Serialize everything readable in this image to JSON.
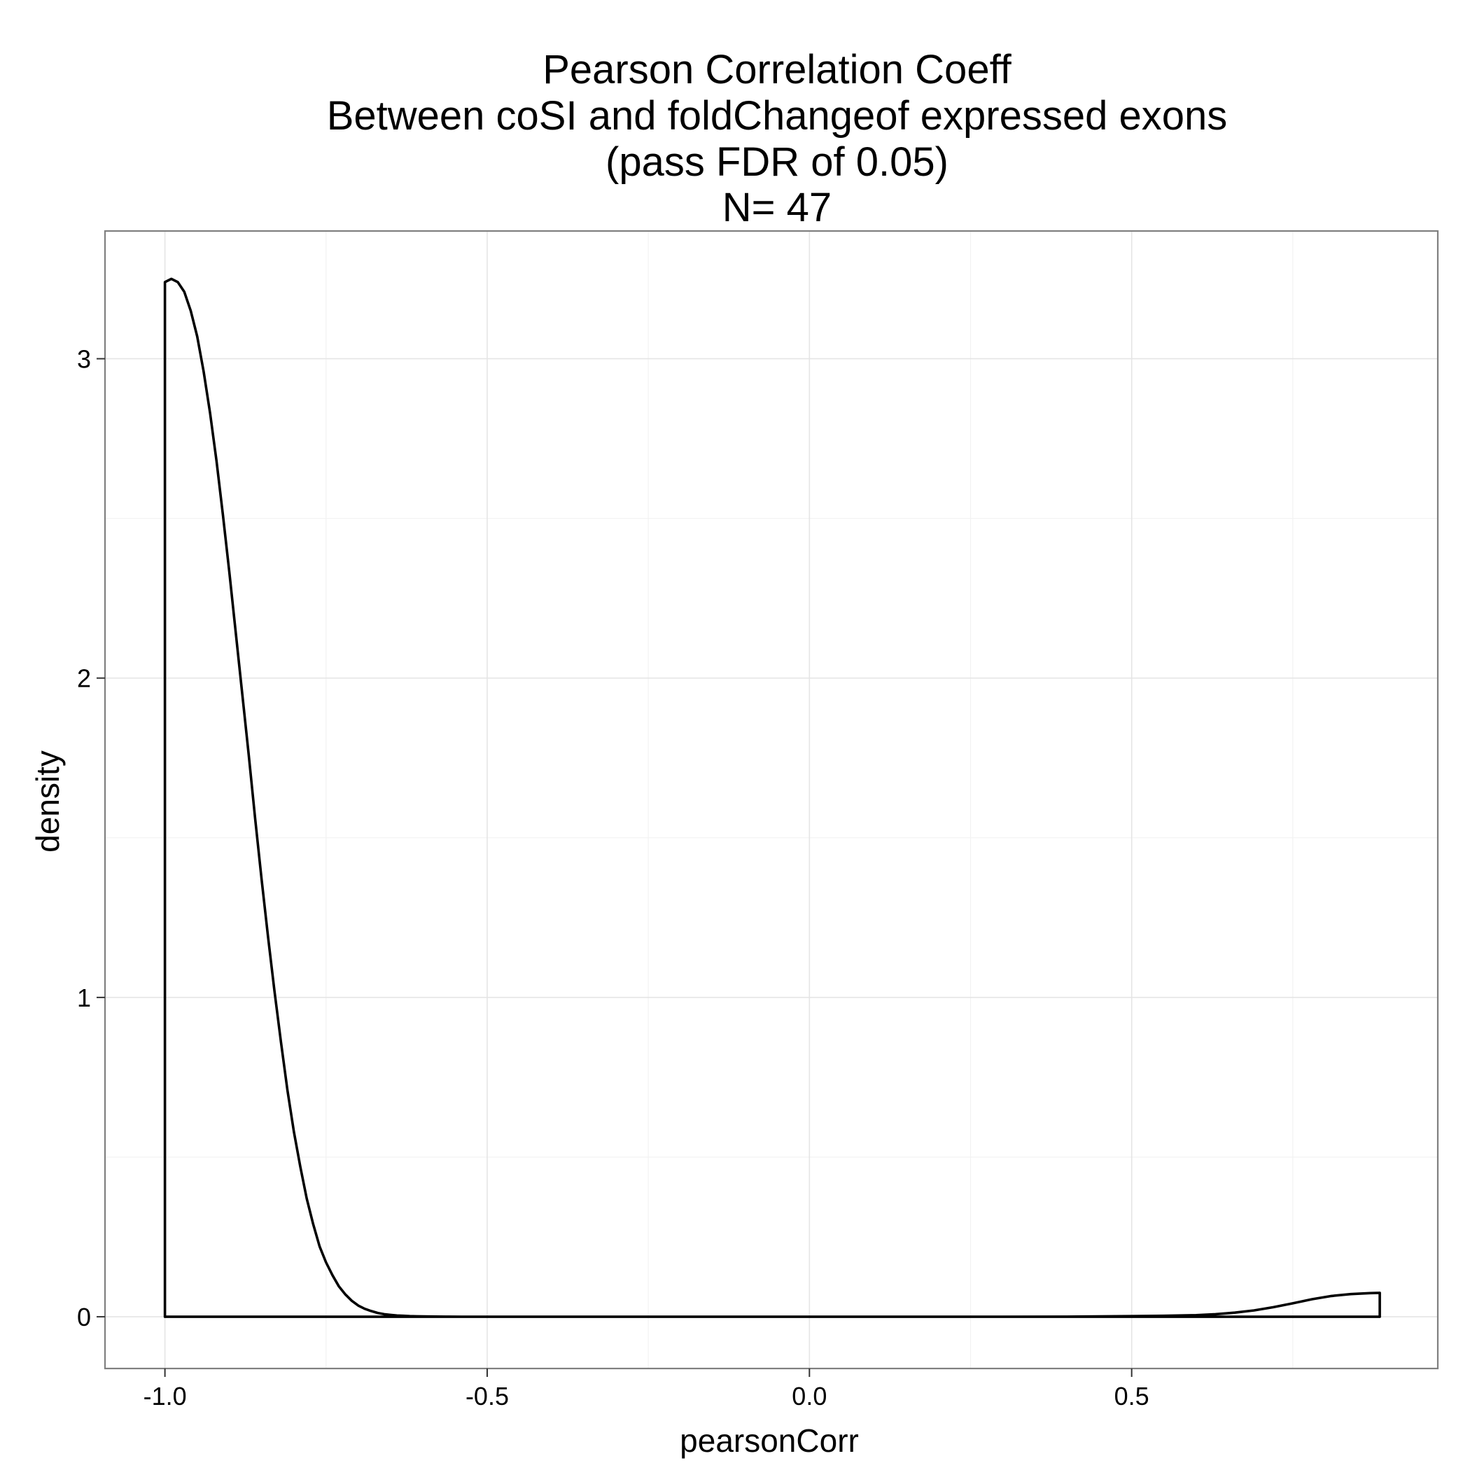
{
  "chart_data": {
    "type": "area",
    "title_lines": [
      "Pearson Correlation Coeff",
      "Between coSI and foldChangeof expressed exons",
      "(pass FDR of 0.05)",
      "N= 47"
    ],
    "xlabel": "pearsonCorr",
    "ylabel": "density",
    "xlim": [
      -1.093,
      0.975
    ],
    "ylim": [
      -0.162,
      3.4
    ],
    "x_ticks": [
      -1.0,
      -0.5,
      0.0,
      0.5
    ],
    "x_tick_labels": [
      "-1.0",
      "-0.5",
      "0.0",
      "0.5"
    ],
    "y_ticks": [
      0,
      1,
      2,
      3
    ],
    "y_tick_labels": [
      "0",
      "1",
      "2",
      "3"
    ],
    "x_minor_ticks": [
      -0.75,
      -0.25,
      0.25,
      0.75
    ],
    "y_minor_ticks": [
      0.5,
      1.5,
      2.5
    ],
    "grid": true,
    "legend": "none",
    "series": [
      {
        "x": [
          -1.0,
          -0.99,
          -0.98,
          -0.97,
          -0.96,
          -0.95,
          -0.94,
          -0.93,
          -0.92,
          -0.91,
          -0.9,
          -0.89,
          -0.88,
          -0.87,
          -0.86,
          -0.85,
          -0.84,
          -0.83,
          -0.82,
          -0.81,
          -0.8,
          -0.79,
          -0.78,
          -0.77,
          -0.76,
          -0.75,
          -0.74,
          -0.73,
          -0.72,
          -0.71,
          -0.7,
          -0.69,
          -0.68,
          -0.67,
          -0.66,
          -0.65,
          -0.64,
          -0.63,
          -0.62,
          -0.61,
          -0.6,
          -0.58,
          -0.56,
          -0.54,
          -0.52,
          -0.5,
          -0.45,
          -0.4,
          -0.3,
          -0.2,
          -0.1,
          0.0,
          0.1,
          0.2,
          0.3,
          0.4,
          0.45,
          0.5,
          0.55,
          0.6,
          0.63,
          0.66,
          0.69,
          0.72,
          0.75,
          0.78,
          0.81,
          0.84,
          0.87,
          0.885
        ],
        "y": [
          3.24,
          3.25,
          3.24,
          3.21,
          3.15,
          3.07,
          2.96,
          2.83,
          2.68,
          2.51,
          2.33,
          2.14,
          1.95,
          1.76,
          1.56,
          1.37,
          1.19,
          1.02,
          0.86,
          0.71,
          0.58,
          0.47,
          0.37,
          0.29,
          0.22,
          0.17,
          0.13,
          0.095,
          0.07,
          0.05,
          0.035,
          0.025,
          0.018,
          0.012,
          0.008,
          0.006,
          0.004,
          0.003,
          0.002,
          0.0015,
          0.001,
          0.0006,
          0.0004,
          0.0002,
          0.0001,
          0.0,
          0.0,
          0.0,
          0.0,
          0.0,
          0.0,
          0.0,
          0.0,
          0.0,
          0.0,
          0.0005,
          0.001,
          0.002,
          0.003,
          0.005,
          0.008,
          0.013,
          0.02,
          0.03,
          0.042,
          0.055,
          0.065,
          0.071,
          0.074,
          0.075
        ]
      }
    ],
    "colors": {
      "panel_background": "#ffffff",
      "panel_border": "#7f7f7f",
      "grid_major": "#e5e5e5",
      "grid_minor": "#f2f2f2",
      "line": "#000000",
      "text": "#000000"
    }
  }
}
